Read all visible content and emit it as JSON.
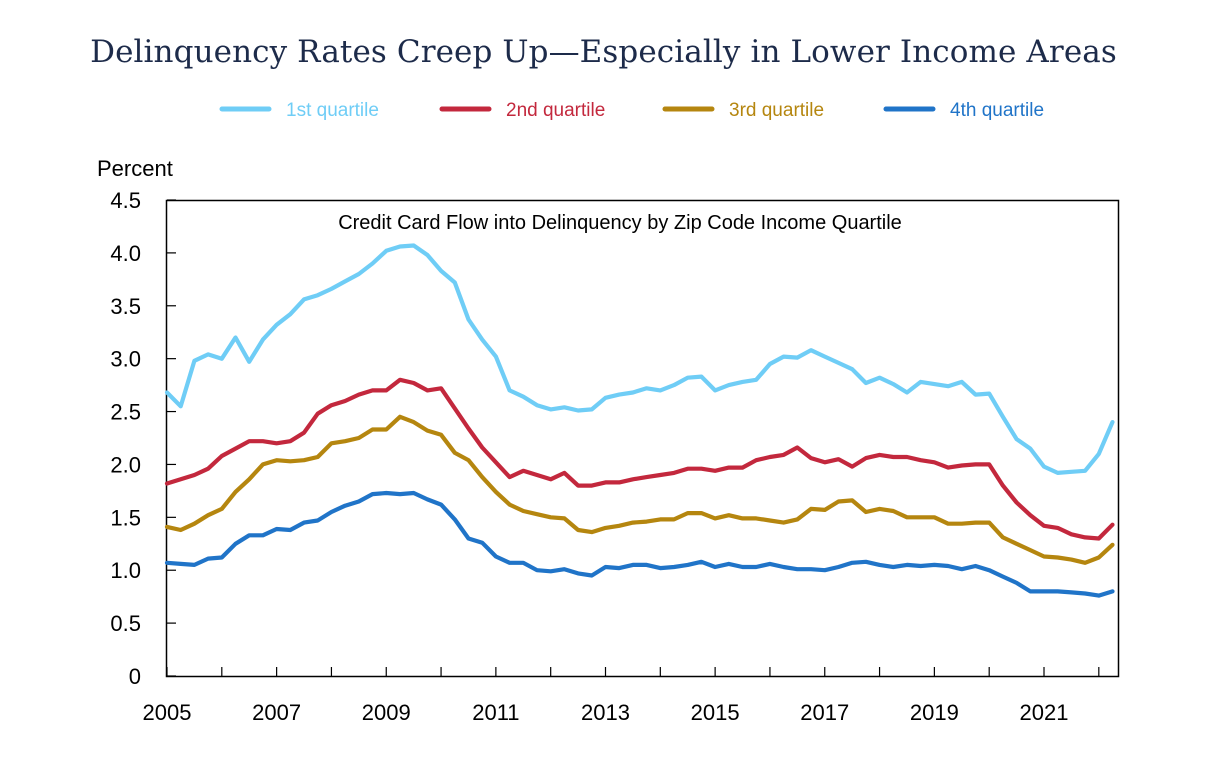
{
  "chart_data": {
    "type": "line",
    "title": "Delinquency Rates Creep Up—Especially in Lower Income Areas",
    "subtitle": "Credit Card Flow into Delinquency by Zip Code Income Quartile",
    "ylabel": "Percent",
    "xlabel": "",
    "xlim": [
      2005,
      2022.35
    ],
    "ylim": [
      0,
      4.5
    ],
    "y_ticks": [
      0,
      0.5,
      1.0,
      1.5,
      2.0,
      2.5,
      3.0,
      3.5,
      4.0,
      4.5
    ],
    "y_tick_labels": [
      "0",
      "0.5",
      "1.0",
      "1.5",
      "2.0",
      "2.5",
      "3.0",
      "3.5",
      "4.0",
      "4.5"
    ],
    "x_ticks": [
      2005,
      2007,
      2009,
      2011,
      2013,
      2015,
      2017,
      2019,
      2021
    ],
    "x_tick_labels": [
      "2005",
      "2007",
      "2009",
      "2011",
      "2013",
      "2015",
      "2017",
      "2019",
      "2021"
    ],
    "x_start": 2005.0,
    "x_step": 0.25,
    "legend_position": "top-center",
    "series": [
      {
        "name": "1st quartile",
        "color": "#6fcdf6",
        "values": [
          2.68,
          2.55,
          2.98,
          3.04,
          3.0,
          3.2,
          2.97,
          3.18,
          3.32,
          3.42,
          3.56,
          3.6,
          3.66,
          3.73,
          3.8,
          3.9,
          4.02,
          4.06,
          4.07,
          3.98,
          3.83,
          3.72,
          3.37,
          3.18,
          3.02,
          2.7,
          2.64,
          2.56,
          2.52,
          2.54,
          2.51,
          2.52,
          2.63,
          2.66,
          2.68,
          2.72,
          2.7,
          2.75,
          2.82,
          2.83,
          2.7,
          2.75,
          2.78,
          2.8,
          2.95,
          3.02,
          3.01,
          3.08,
          3.02,
          2.96,
          2.9,
          2.77,
          2.82,
          2.76,
          2.68,
          2.78,
          2.76,
          2.74,
          2.78,
          2.66,
          2.67,
          2.45,
          2.24,
          2.15,
          1.98,
          1.92,
          1.93,
          1.94,
          2.1,
          2.4
        ]
      },
      {
        "name": "2nd quartile",
        "color": "#c3283d",
        "values": [
          1.82,
          1.86,
          1.9,
          1.96,
          2.08,
          2.15,
          2.22,
          2.22,
          2.2,
          2.22,
          2.3,
          2.48,
          2.56,
          2.6,
          2.66,
          2.7,
          2.7,
          2.8,
          2.77,
          2.7,
          2.72,
          2.53,
          2.34,
          2.16,
          2.02,
          1.88,
          1.94,
          1.9,
          1.86,
          1.92,
          1.8,
          1.8,
          1.83,
          1.83,
          1.86,
          1.88,
          1.9,
          1.92,
          1.96,
          1.96,
          1.94,
          1.97,
          1.97,
          2.04,
          2.07,
          2.09,
          2.16,
          2.06,
          2.02,
          2.05,
          1.98,
          2.06,
          2.09,
          2.07,
          2.07,
          2.04,
          2.02,
          1.97,
          1.99,
          2.0,
          2.0,
          1.8,
          1.64,
          1.52,
          1.42,
          1.4,
          1.34,
          1.31,
          1.3,
          1.43
        ]
      },
      {
        "name": "3rd quartile",
        "color": "#b5860f",
        "values": [
          1.41,
          1.38,
          1.44,
          1.52,
          1.58,
          1.74,
          1.86,
          2.0,
          2.04,
          2.03,
          2.04,
          2.07,
          2.2,
          2.22,
          2.25,
          2.33,
          2.33,
          2.45,
          2.4,
          2.32,
          2.28,
          2.11,
          2.04,
          1.88,
          1.74,
          1.62,
          1.56,
          1.53,
          1.5,
          1.49,
          1.38,
          1.36,
          1.4,
          1.42,
          1.45,
          1.46,
          1.48,
          1.48,
          1.54,
          1.54,
          1.49,
          1.52,
          1.49,
          1.49,
          1.47,
          1.45,
          1.48,
          1.58,
          1.57,
          1.65,
          1.66,
          1.55,
          1.58,
          1.56,
          1.5,
          1.5,
          1.5,
          1.44,
          1.44,
          1.45,
          1.45,
          1.31,
          1.25,
          1.19,
          1.13,
          1.12,
          1.1,
          1.07,
          1.12,
          1.24
        ]
      },
      {
        "name": "4th quartile",
        "color": "#2074c8",
        "values": [
          1.07,
          1.06,
          1.05,
          1.11,
          1.12,
          1.25,
          1.33,
          1.33,
          1.39,
          1.38,
          1.45,
          1.47,
          1.55,
          1.61,
          1.65,
          1.72,
          1.73,
          1.72,
          1.73,
          1.67,
          1.62,
          1.48,
          1.3,
          1.26,
          1.13,
          1.07,
          1.07,
          1.0,
          0.99,
          1.01,
          0.97,
          0.95,
          1.03,
          1.02,
          1.05,
          1.05,
          1.02,
          1.03,
          1.05,
          1.08,
          1.03,
          1.06,
          1.03,
          1.03,
          1.06,
          1.03,
          1.01,
          1.01,
          1.0,
          1.03,
          1.07,
          1.08,
          1.05,
          1.03,
          1.05,
          1.04,
          1.05,
          1.04,
          1.01,
          1.04,
          1.0,
          0.94,
          0.88,
          0.8,
          0.8,
          0.8,
          0.79,
          0.78,
          0.76,
          0.8
        ]
      }
    ]
  }
}
